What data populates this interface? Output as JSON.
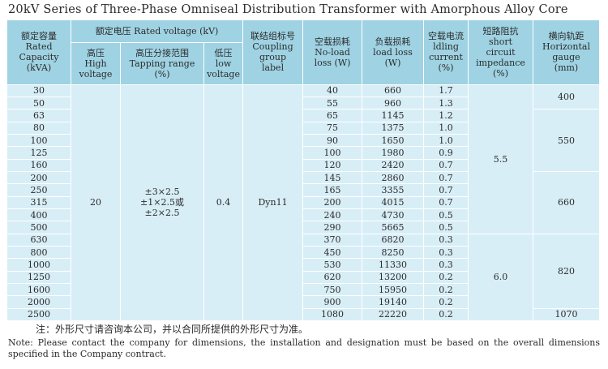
{
  "title": "20kV Series of Three-Phase Omniseal Distribution Transformer with Amorphous Alloy Core",
  "headers": {
    "capacity": [
      "额定容量",
      "Rated",
      "Capacity",
      "(kVA)"
    ],
    "rated_voltage": "额定电压 Rated voltage (kV)",
    "hv": [
      "高压",
      "High",
      "voltage"
    ],
    "tapping": [
      "高压分接范围",
      "Tapping range",
      "(%)"
    ],
    "lv": [
      "低压",
      "low",
      "voltage"
    ],
    "coupling": [
      "联结组标号",
      "Coupling",
      "group",
      "label"
    ],
    "no_load": [
      "空载损耗",
      "No-load",
      "loss (W)"
    ],
    "load_loss": [
      "负载损耗",
      "load loss",
      "(W)"
    ],
    "idle_current": [
      "空载电流",
      "ldling",
      "current",
      "(%)"
    ],
    "impedance": [
      "短路阻抗",
      "short",
      "circuit",
      "impedance",
      "(%)"
    ],
    "gauge": [
      "横向轨距",
      "Horizontal",
      "gauge",
      "(mm)"
    ]
  },
  "rows": [
    [
      "30",
      "40",
      "660",
      "1.7"
    ],
    [
      "50",
      "55",
      "960",
      "1.3"
    ],
    [
      "63",
      "65",
      "1145",
      "1.2"
    ],
    [
      "80",
      "75",
      "1375",
      "1.0"
    ],
    [
      "100",
      "90",
      "1650",
      "1.0"
    ],
    [
      "125",
      "100",
      "1980",
      "0.9"
    ],
    [
      "160",
      "120",
      "2420",
      "0.7"
    ],
    [
      "200",
      "145",
      "2860",
      "0.7"
    ],
    [
      "250",
      "165",
      "3355",
      "0.7"
    ],
    [
      "315",
      "200",
      "4015",
      "0.7"
    ],
    [
      "400",
      "240",
      "4730",
      "0.5"
    ],
    [
      "500",
      "290",
      "5665",
      "0.5"
    ],
    [
      "630",
      "370",
      "6820",
      "0.3"
    ],
    [
      "800",
      "450",
      "8250",
      "0.3"
    ],
    [
      "1000",
      "530",
      "11330",
      "0.3"
    ],
    [
      "1250",
      "620",
      "13200",
      "0.2"
    ],
    [
      "1600",
      "750",
      "15950",
      "0.2"
    ],
    [
      "2000",
      "900",
      "19140",
      "0.2"
    ],
    [
      "2500",
      "1080",
      "22220",
      "0.2"
    ]
  ],
  "merged": {
    "hv": "20",
    "tapping": [
      "±3×2.5",
      "±1×2.5或",
      "±2×2.5"
    ],
    "lv": "0.4",
    "coupling": "Dyn11",
    "impedance_a": "5.5",
    "impedance_b": "6.0",
    "gauge_400": "400",
    "gauge_550": "550",
    "gauge_660": "660",
    "gauge_820": "820",
    "gauge_1070": "1070"
  },
  "notes": {
    "zh": "注：外形尺寸请咨询本公司，并以合同所提供的外形尺寸为准。",
    "en": "Note: Please contact the company for dimensions, the installation and designation must be based on the overall dimensions specified in the Company contract."
  },
  "colors": {
    "header_bg": "#9fd3e3",
    "cell_bg": "#d8eef6",
    "grid": "#ffffff"
  }
}
